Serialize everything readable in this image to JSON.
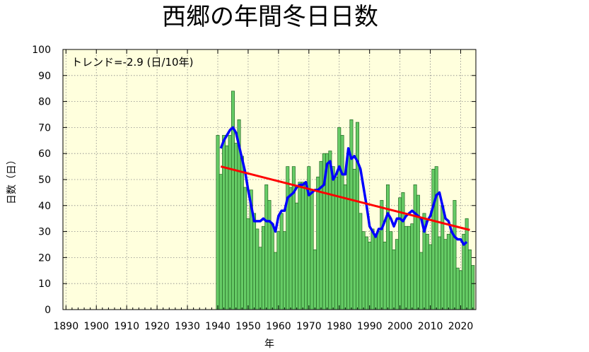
{
  "chart_data": {
    "type": "bar",
    "title": "西郷の年間冬日日数",
    "xlabel": "年",
    "ylabel": "日数（日）",
    "annotation": "トレンド=-2.9 (日/10年)",
    "xlim": [
      1889,
      2025
    ],
    "ylim": [
      0,
      100
    ],
    "xticks": [
      1890,
      1900,
      1910,
      1920,
      1930,
      1940,
      1950,
      1960,
      1970,
      1980,
      1990,
      2000,
      2010,
      2020
    ],
    "yticks": [
      0,
      10,
      20,
      30,
      40,
      50,
      60,
      70,
      80,
      90,
      100
    ],
    "grid": true,
    "colors": {
      "background": "#ffffdd",
      "bar_fill": "#66cc66",
      "bar_edge": "#226622",
      "moving_average": "#0000ff",
      "trend": "#ff0000"
    },
    "series": [
      {
        "name": "",
        "type": "bar",
        "x": [
          1940,
          1941,
          1942,
          1943,
          1944,
          1945,
          1946,
          1947,
          1948,
          1949,
          1950,
          1951,
          1952,
          1953,
          1954,
          1955,
          1956,
          1957,
          1958,
          1959,
          1960,
          1961,
          1962,
          1963,
          1964,
          1965,
          1966,
          1967,
          1968,
          1969,
          1970,
          1971,
          1972,
          1973,
          1974,
          1975,
          1976,
          1977,
          1978,
          1979,
          1980,
          1981,
          1982,
          1983,
          1984,
          1985,
          1986,
          1987,
          1988,
          1989,
          1990,
          1991,
          1992,
          1993,
          1994,
          1995,
          1996,
          1997,
          1998,
          1999,
          2000,
          2001,
          2002,
          2003,
          2004,
          2005,
          2006,
          2007,
          2008,
          2009,
          2010,
          2011,
          2012,
          2013,
          2014,
          2015,
          2016,
          2017,
          2018,
          2019,
          2020,
          2021,
          2022,
          2023,
          2024
        ],
        "values": [
          67,
          52,
          67,
          63,
          67,
          84,
          64,
          73,
          59,
          47,
          35,
          46,
          37,
          31,
          24,
          32,
          48,
          42,
          33,
          22,
          30,
          37,
          30,
          55,
          47,
          55,
          41,
          49,
          49,
          48,
          55,
          46,
          23,
          51,
          57,
          60,
          60,
          61,
          55,
          51,
          70,
          67,
          48,
          60,
          73,
          54,
          72,
          37,
          30,
          28,
          26,
          31,
          28,
          30,
          42,
          26,
          48,
          30,
          23,
          27,
          43,
          45,
          32,
          32,
          33,
          48,
          44,
          22,
          37,
          29,
          25,
          54,
          55,
          28,
          40,
          27,
          29,
          30,
          42,
          16,
          15,
          29,
          35,
          23,
          17
        ]
      },
      {
        "name": "",
        "type": "line",
        "x": [
          1941,
          1942,
          1943,
          1944,
          1945,
          1946,
          1947,
          1948,
          1949,
          1950,
          1951,
          1952,
          1953,
          1954,
          1955,
          1956,
          1957,
          1958,
          1959,
          1960,
          1961,
          1962,
          1963,
          1964,
          1965,
          1966,
          1967,
          1968,
          1969,
          1970,
          1971,
          1972,
          1973,
          1974,
          1975,
          1976,
          1977,
          1978,
          1979,
          1980,
          1981,
          1982,
          1983,
          1984,
          1985,
          1986,
          1987,
          1988,
          1989,
          1990,
          1991,
          1992,
          1993,
          1994,
          1995,
          1996,
          1997,
          1998,
          1999,
          2000,
          2001,
          2002,
          2003,
          2004,
          2005,
          2006,
          2007,
          2008,
          2009,
          2010,
          2011,
          2012,
          2013,
          2014,
          2015,
          2016,
          2017,
          2018,
          2019,
          2020,
          2021,
          2022
        ],
        "values": [
          62,
          65,
          67,
          69,
          70,
          68,
          63,
          58,
          53,
          46,
          40,
          34,
          34,
          34,
          35,
          34,
          34,
          33,
          30,
          36,
          38,
          38,
          43,
          44,
          45,
          47,
          48,
          48,
          49,
          44,
          45,
          46,
          46,
          47,
          48,
          56,
          57,
          50,
          52,
          55,
          52,
          52,
          62,
          58,
          59,
          57,
          54,
          47,
          40,
          32,
          30,
          28,
          31,
          31,
          34,
          37,
          35,
          32,
          35,
          35,
          34,
          36,
          37,
          38,
          37,
          36,
          35,
          30,
          34,
          36,
          40,
          44,
          45,
          40,
          35,
          34,
          30,
          28,
          27,
          27,
          25,
          26
        ]
      },
      {
        "name": "",
        "type": "trend",
        "x": [
          1941,
          2023
        ],
        "values": [
          55,
          30.6
        ]
      }
    ]
  }
}
